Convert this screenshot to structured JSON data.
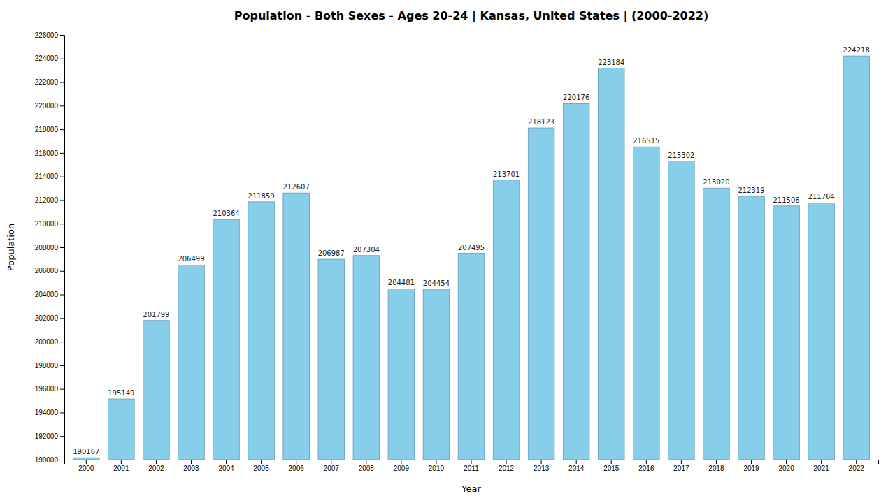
{
  "chart_data": {
    "type": "bar",
    "title": "Population - Both Sexes - Ages 20-24 | Kansas, United States |  (2000-2022)",
    "xlabel": "Year",
    "ylabel": "Population",
    "categories": [
      "2000",
      "2001",
      "2002",
      "2003",
      "2004",
      "2005",
      "2006",
      "2007",
      "2008",
      "2009",
      "2010",
      "2011",
      "2012",
      "2013",
      "2014",
      "2015",
      "2016",
      "2017",
      "2018",
      "2019",
      "2020",
      "2021",
      "2022"
    ],
    "values": [
      190167,
      195149,
      201799,
      206499,
      210364,
      211859,
      212607,
      206987,
      207304,
      204481,
      204454,
      207495,
      213701,
      218123,
      220176,
      223184,
      216515,
      215302,
      213020,
      212319,
      211506,
      211764,
      224218
    ],
    "color": "#87CEEB",
    "ylim": [
      190000,
      226000
    ],
    "yticks": [
      190000,
      192000,
      194000,
      196000,
      198000,
      200000,
      202000,
      204000,
      206000,
      208000,
      210000,
      212000,
      214000,
      216000,
      218000,
      220000,
      222000,
      224000,
      226000
    ],
    "grid": false,
    "data_labels": true
  }
}
